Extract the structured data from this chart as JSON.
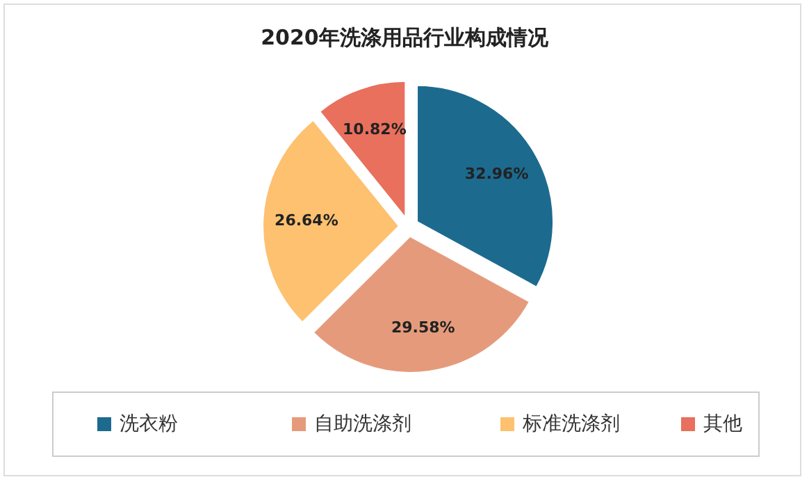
{
  "chart_data": {
    "type": "pie",
    "title": "2020年洗涤用品行业构成情况",
    "categories": [
      "洗衣粉",
      "自助洗涤剂",
      "标准洗涤剂",
      "其他"
    ],
    "values": [
      32.96,
      29.58,
      26.64,
      10.82
    ],
    "colors": [
      "#1d6a8f",
      "#e59b7b",
      "#fdc170",
      "#e8705d"
    ],
    "value_labels": [
      "32.96%",
      "29.58%",
      "26.64%",
      "10.82%"
    ],
    "legend": "bottom"
  }
}
